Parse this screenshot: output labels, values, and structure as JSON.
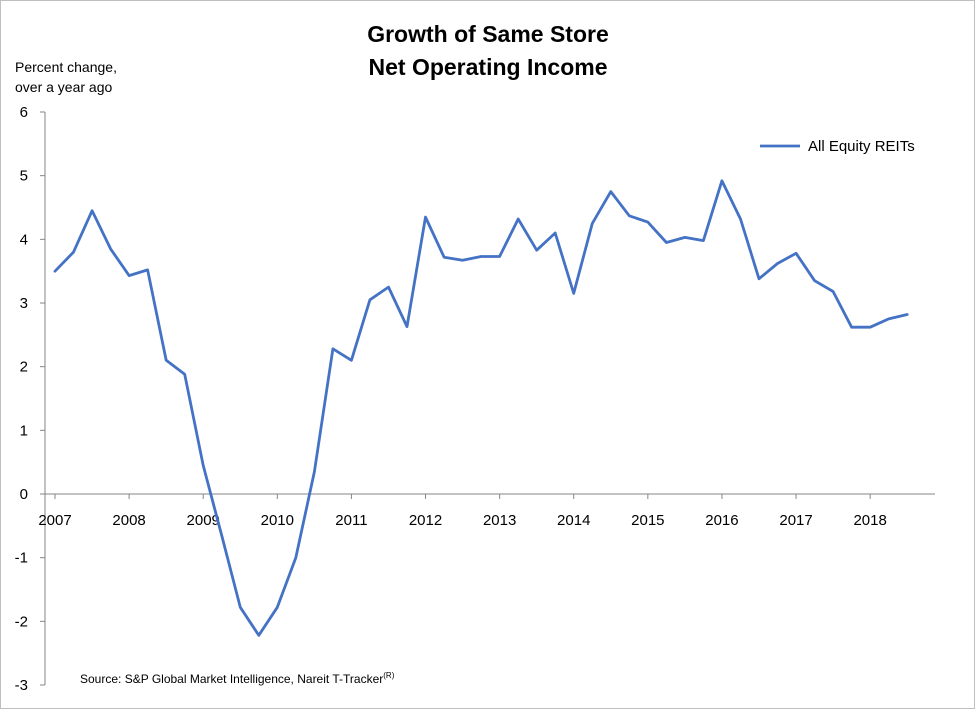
{
  "chart_data": {
    "type": "line",
    "title_line1": "Growth of Same Store",
    "title_line2": "Net Operating Income",
    "ylabel_line1": "Percent change,",
    "ylabel_line2": "over a year ago",
    "source_text": "Source: S&P Global Market Intelligence, Nareit T-Tracker",
    "source_sup": "(R)",
    "ylim": [
      -3,
      6
    ],
    "yticks": [
      "6",
      "5",
      "4",
      "3",
      "2",
      "1",
      "0",
      "-1",
      "-2",
      "-3"
    ],
    "xlim": [
      2007.0,
      2018.875
    ],
    "xticks": [
      "2007",
      "2008",
      "2009",
      "2010",
      "2011",
      "2012",
      "2013",
      "2014",
      "2015",
      "2016",
      "2017",
      "2018"
    ],
    "grid": false,
    "legend_position": "top-right",
    "series": [
      {
        "name": "All Equity REITs",
        "color": "#4472c4",
        "x": [
          2007.0,
          2007.25,
          2007.5,
          2007.75,
          2008.0,
          2008.25,
          2008.5,
          2008.75,
          2009.0,
          2009.25,
          2009.5,
          2009.75,
          2010.0,
          2010.25,
          2010.5,
          2010.75,
          2011.0,
          2011.25,
          2011.5,
          2011.75,
          2012.0,
          2012.25,
          2012.5,
          2012.75,
          2013.0,
          2013.25,
          2013.5,
          2013.75,
          2014.0,
          2014.25,
          2014.5,
          2014.75,
          2015.0,
          2015.25,
          2015.5,
          2015.75,
          2016.0,
          2016.25,
          2016.5,
          2016.75,
          2017.0,
          2017.25,
          2017.5,
          2017.75,
          2018.0,
          2018.25,
          2018.5
        ],
        "values": [
          3.5,
          3.8,
          4.45,
          3.85,
          3.43,
          3.52,
          2.1,
          1.88,
          0.45,
          -0.65,
          -1.78,
          -2.22,
          -1.78,
          -1.0,
          0.35,
          2.28,
          2.1,
          3.05,
          3.25,
          2.63,
          4.35,
          3.72,
          3.67,
          3.73,
          3.73,
          4.32,
          3.83,
          4.1,
          3.15,
          4.25,
          4.75,
          4.37,
          4.27,
          3.95,
          4.03,
          3.98,
          4.92,
          4.32,
          3.38,
          3.62,
          3.78,
          3.35,
          3.18,
          2.62,
          2.62,
          2.75,
          2.82
        ]
      }
    ]
  }
}
